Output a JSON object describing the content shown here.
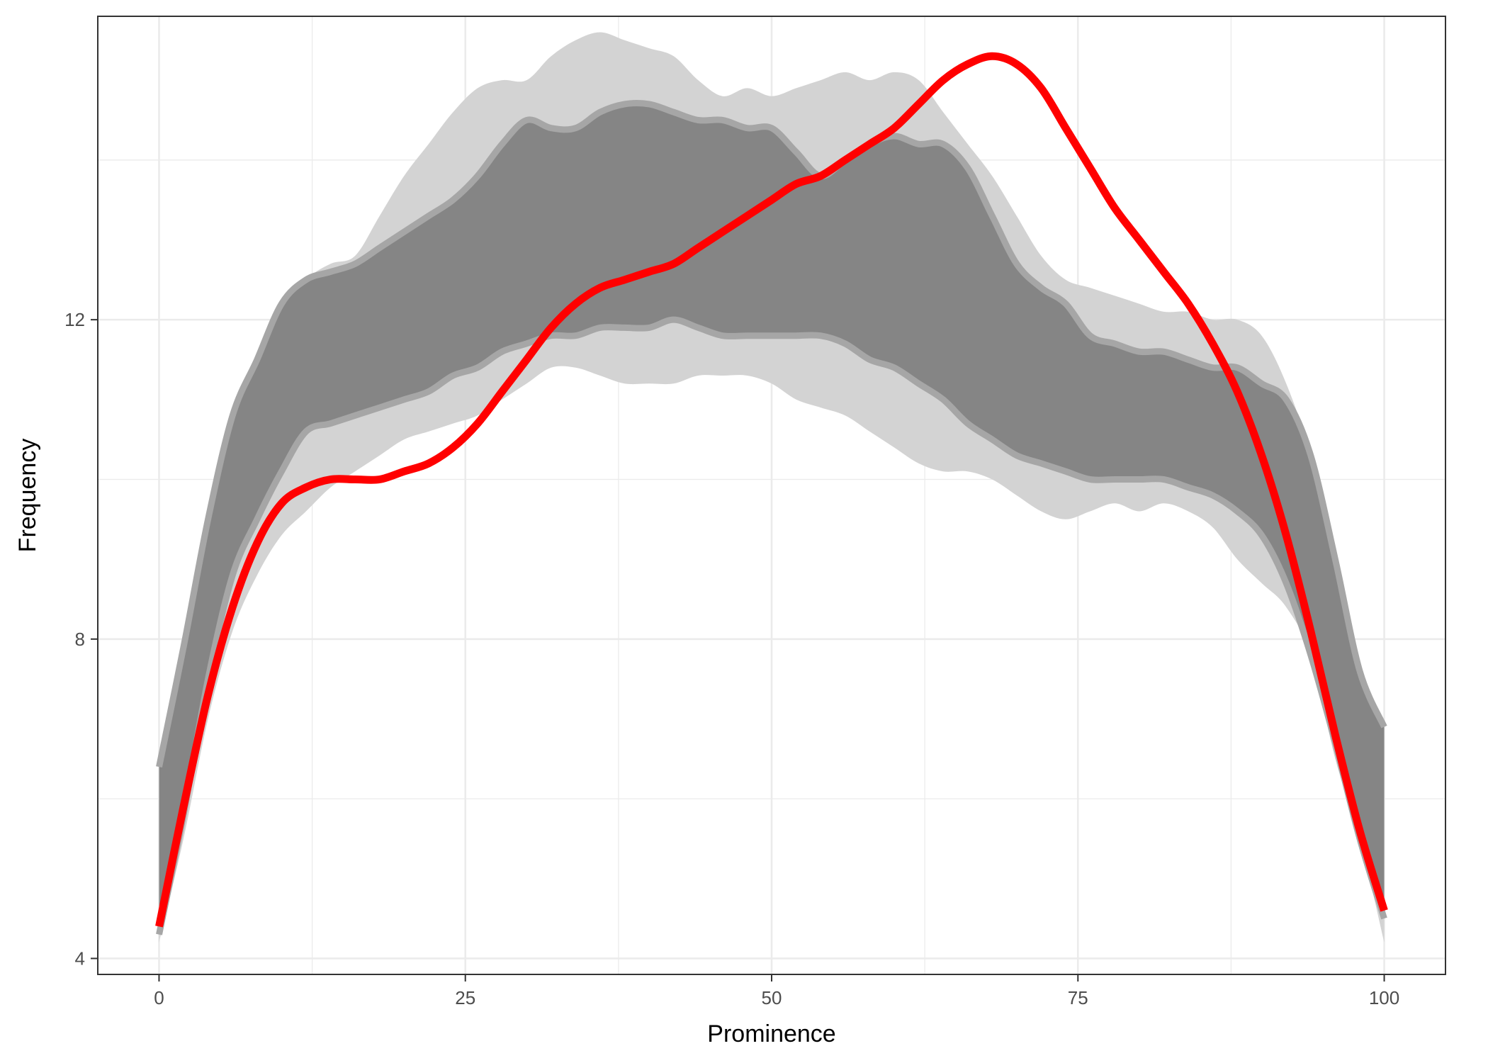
{
  "chart_data": {
    "type": "area",
    "title": "",
    "xlabel": "Prominence",
    "ylabel": "Frequency",
    "xlim": [
      -5,
      105
    ],
    "ylim": [
      3.8,
      15.8
    ],
    "x_ticks": [
      0,
      25,
      50,
      75,
      100
    ],
    "x_tick_labels": [
      "0",
      "25",
      "50",
      "75",
      "100"
    ],
    "y_ticks": [
      4,
      8,
      12
    ],
    "y_tick_labels": [
      "4",
      "8",
      "12"
    ],
    "grid": true,
    "legend": "none",
    "colors": {
      "outer_band": "#d3d3d3",
      "inner_band": "#858585",
      "inner_band_edge": "#a6a6a6",
      "line": "#ff0000",
      "grid": "#ebebeb",
      "panel_border": "#333333"
    },
    "bands": [
      {
        "role": "outer",
        "x": [
          0,
          2,
          4,
          6,
          8,
          10,
          12,
          14,
          16,
          18,
          20,
          22,
          24,
          26,
          28,
          30,
          32,
          34,
          36,
          38,
          40,
          42,
          44,
          46,
          48,
          50,
          52,
          54,
          56,
          58,
          60,
          62,
          64,
          66,
          68,
          70,
          72,
          74,
          76,
          78,
          80,
          82,
          84,
          86,
          88,
          90,
          92,
          94,
          96,
          98,
          100
        ],
        "upper": [
          6.2,
          7.6,
          9.0,
          10.4,
          11.4,
          12.1,
          12.5,
          12.7,
          12.8,
          13.3,
          13.8,
          14.2,
          14.6,
          14.9,
          15.0,
          15.0,
          15.3,
          15.5,
          15.6,
          15.5,
          15.4,
          15.3,
          15.0,
          14.8,
          14.9,
          14.8,
          14.9,
          15.0,
          15.1,
          15.0,
          15.1,
          15.0,
          14.6,
          14.2,
          13.8,
          13.3,
          12.8,
          12.5,
          12.4,
          12.3,
          12.2,
          12.1,
          12.1,
          12.0,
          12.0,
          11.8,
          11.2,
          10.3,
          9.0,
          7.5,
          6.0
        ],
        "lower": [
          4.2,
          5.5,
          7.0,
          8.1,
          8.8,
          9.3,
          9.6,
          9.9,
          10.1,
          10.3,
          10.5,
          10.6,
          10.7,
          10.8,
          11.0,
          11.2,
          11.4,
          11.4,
          11.3,
          11.2,
          11.2,
          11.2,
          11.3,
          11.3,
          11.3,
          11.2,
          11.0,
          10.9,
          10.8,
          10.6,
          10.4,
          10.2,
          10.1,
          10.1,
          10.0,
          9.8,
          9.6,
          9.5,
          9.6,
          9.7,
          9.6,
          9.7,
          9.6,
          9.4,
          9.0,
          8.7,
          8.4,
          7.8,
          6.5,
          5.5,
          4.2
        ]
      },
      {
        "role": "inner",
        "x": [
          0,
          2,
          4,
          6,
          8,
          10,
          12,
          14,
          16,
          18,
          20,
          22,
          24,
          26,
          28,
          30,
          32,
          34,
          36,
          38,
          40,
          42,
          44,
          46,
          48,
          50,
          52,
          54,
          56,
          58,
          60,
          62,
          64,
          66,
          68,
          70,
          72,
          74,
          76,
          78,
          80,
          82,
          84,
          86,
          88,
          90,
          92,
          94,
          96,
          98,
          100
        ],
        "upper": [
          6.4,
          7.9,
          9.5,
          10.8,
          11.5,
          12.2,
          12.5,
          12.6,
          12.7,
          12.9,
          13.1,
          13.3,
          13.5,
          13.8,
          14.2,
          14.5,
          14.4,
          14.4,
          14.6,
          14.7,
          14.7,
          14.6,
          14.5,
          14.5,
          14.4,
          14.4,
          14.1,
          13.8,
          14.0,
          14.2,
          14.3,
          14.2,
          14.2,
          13.9,
          13.3,
          12.7,
          12.4,
          12.2,
          11.8,
          11.7,
          11.6,
          11.6,
          11.5,
          11.4,
          11.4,
          11.2,
          11.0,
          10.3,
          9.0,
          7.6,
          6.9
        ],
        "lower": [
          4.3,
          5.8,
          7.5,
          8.8,
          9.5,
          10.1,
          10.6,
          10.7,
          10.8,
          10.9,
          11.0,
          11.1,
          11.3,
          11.4,
          11.6,
          11.7,
          11.8,
          11.8,
          11.9,
          11.9,
          11.9,
          12.0,
          11.9,
          11.8,
          11.8,
          11.8,
          11.8,
          11.8,
          11.7,
          11.5,
          11.4,
          11.2,
          11.0,
          10.7,
          10.5,
          10.3,
          10.2,
          10.1,
          10.0,
          10.0,
          10.0,
          10.0,
          9.9,
          9.8,
          9.6,
          9.3,
          8.7,
          7.8,
          6.7,
          5.5,
          4.5
        ]
      }
    ],
    "series": [
      {
        "role": "observed",
        "x": [
          0,
          2,
          4,
          6,
          8,
          10,
          12,
          14,
          16,
          18,
          20,
          22,
          24,
          26,
          28,
          30,
          32,
          34,
          36,
          38,
          40,
          42,
          44,
          46,
          48,
          50,
          52,
          54,
          56,
          58,
          60,
          62,
          64,
          66,
          68,
          70,
          72,
          74,
          76,
          78,
          80,
          82,
          84,
          86,
          88,
          90,
          92,
          94,
          96,
          98,
          100
        ],
        "y": [
          4.4,
          5.9,
          7.3,
          8.4,
          9.2,
          9.7,
          9.9,
          10.0,
          10.0,
          10.0,
          10.1,
          10.2,
          10.4,
          10.7,
          11.1,
          11.5,
          11.9,
          12.2,
          12.4,
          12.5,
          12.6,
          12.7,
          12.9,
          13.1,
          13.3,
          13.5,
          13.7,
          13.8,
          14.0,
          14.2,
          14.4,
          14.7,
          15.0,
          15.2,
          15.3,
          15.2,
          14.9,
          14.4,
          13.9,
          13.4,
          13.0,
          12.6,
          12.2,
          11.7,
          11.1,
          10.3,
          9.3,
          8.1,
          6.8,
          5.6,
          4.6
        ]
      }
    ]
  }
}
